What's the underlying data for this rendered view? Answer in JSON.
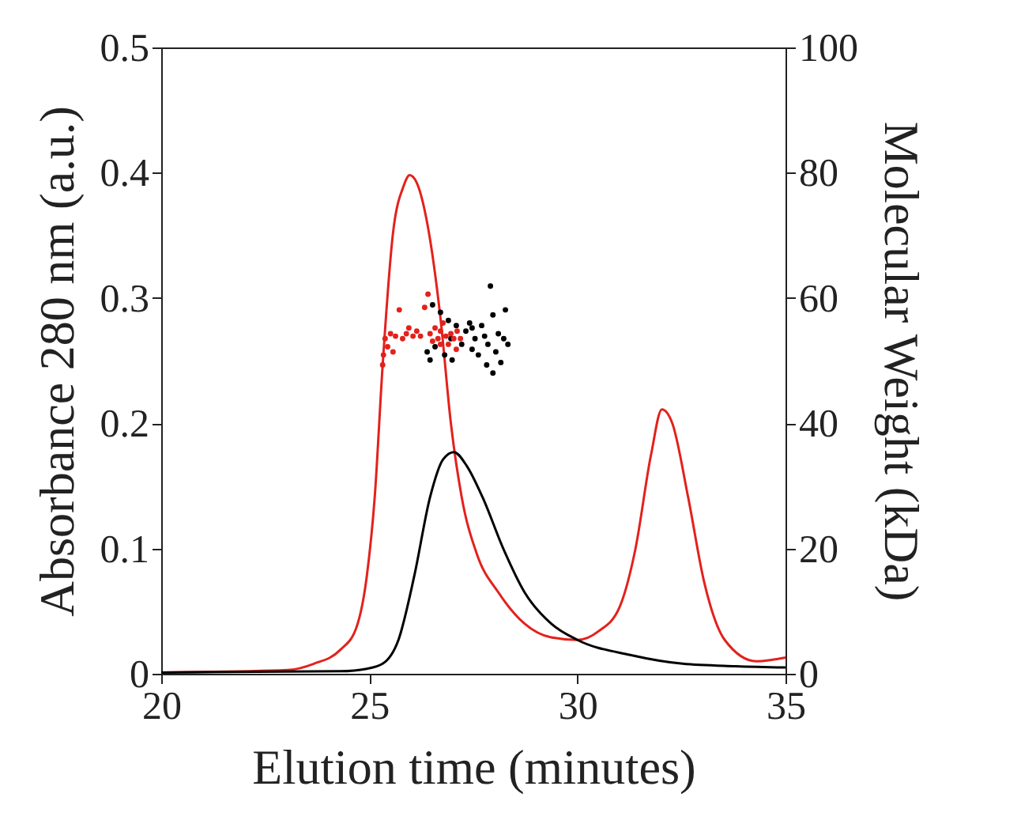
{
  "chart_data": {
    "type": "line",
    "xlabel": "Elution time (minutes)",
    "ylabel": "Absorbance 280 nm (a.u.)",
    "y2label": "Molecular Weight (kDa)",
    "xlim": [
      20,
      35
    ],
    "xticks": [
      20,
      25,
      30,
      35
    ],
    "ylim": [
      0,
      0.5
    ],
    "yticks": [
      0,
      0.1,
      0.2,
      0.3,
      0.4,
      0.5
    ],
    "y2lim": [
      0,
      100
    ],
    "y2ticks": [
      0,
      20,
      40,
      60,
      80,
      100
    ],
    "series": [
      {
        "color": "#e3211c",
        "x": [
          20,
          23.04,
          23.67,
          24.3,
          24.68,
          24.94,
          25.13,
          25.32,
          25.57,
          25.82,
          25.97,
          26.14,
          26.39,
          26.71,
          26.96,
          27.22,
          27.59,
          28.1,
          28.73,
          29.37,
          30.0,
          30.51,
          31.01,
          31.39,
          31.77,
          32.03,
          32.28,
          32.66,
          33.04,
          33.54,
          34.3,
          35.0
        ],
        "values": [
          0.001,
          0.003,
          0.008,
          0.019,
          0.036,
          0.078,
          0.141,
          0.246,
          0.352,
          0.389,
          0.398,
          0.392,
          0.36,
          0.284,
          0.2,
          0.141,
          0.095,
          0.065,
          0.04,
          0.029,
          0.027,
          0.034,
          0.053,
          0.099,
          0.175,
          0.211,
          0.2,
          0.141,
          0.074,
          0.027,
          0.01,
          0.013
        ]
      },
      {
        "color": "#000000",
        "x": [
          20,
          24.3,
          24.94,
          25.32,
          25.7,
          26.08,
          26.46,
          26.77,
          27.03,
          27.34,
          27.72,
          28.23,
          28.73,
          29.37,
          30.0,
          31.27,
          32.53,
          33.8,
          35.0
        ],
        "values": [
          0.001,
          0.002,
          0.004,
          0.008,
          0.027,
          0.078,
          0.141,
          0.171,
          0.177,
          0.166,
          0.141,
          0.099,
          0.065,
          0.04,
          0.027,
          0.015,
          0.008,
          0.006,
          0.005
        ]
      },
      {
        "type": "scatter",
        "axis": "y2",
        "marker": "circle",
        "color": "#000000",
        "x": [
          26.39,
          26.46,
          26.52,
          26.58,
          26.71,
          26.81,
          26.9,
          26.99,
          27.09,
          27.22,
          27.32,
          27.41,
          27.47,
          27.54,
          27.62,
          27.7,
          27.77,
          27.85,
          27.91,
          27.97,
          28.04,
          28.1,
          28.16,
          28.23,
          28.27,
          27.97,
          28.33,
          27.82,
          27.47,
          26.96
        ],
        "values": [
          51.4,
          50.1,
          58.9,
          52.2,
          57.7,
          50.9,
          56.4,
          50.1,
          55.6,
          52.6,
          54.7,
          56.0,
          51.8,
          53.5,
          50.9,
          55.6,
          53.9,
          52.6,
          61.9,
          57.3,
          51.4,
          54.3,
          49.7,
          53.5,
          58.1,
          48.0,
          52.6,
          49.3,
          55.2,
          53.5
        ]
      },
      {
        "type": "scatter",
        "axis": "y2",
        "marker": "circle",
        "color": "#e3211c",
        "x": [
          25.32,
          25.34,
          25.38,
          25.44,
          25.51,
          25.57,
          25.63,
          25.72,
          25.8,
          25.89,
          25.95,
          26.05,
          26.14,
          26.23,
          26.33,
          26.41,
          26.46,
          26.52,
          26.58,
          26.65,
          26.71,
          26.77,
          26.84,
          26.9,
          26.96,
          27.03,
          27.11,
          27.19,
          27.09,
          26.71
        ],
        "values": [
          49.3,
          50.9,
          53.5,
          52.2,
          54.3,
          51.4,
          53.9,
          58.1,
          53.5,
          54.3,
          55.2,
          53.9,
          54.7,
          53.9,
          58.5,
          60.6,
          54.3,
          53.1,
          55.2,
          53.5,
          54.7,
          56.0,
          53.9,
          52.6,
          54.3,
          53.5,
          54.7,
          53.5,
          51.8,
          52.6
        ]
      }
    ]
  }
}
